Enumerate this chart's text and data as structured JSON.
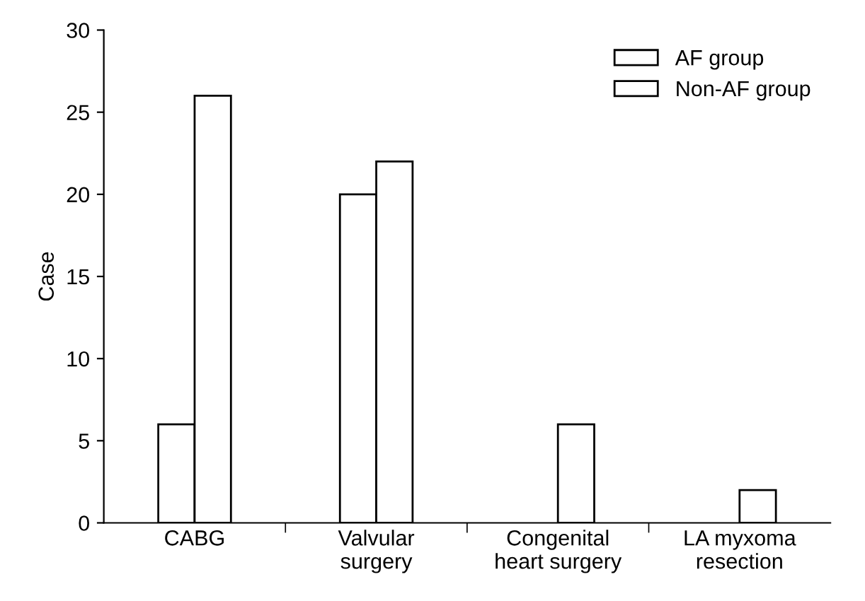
{
  "chart_data": {
    "type": "bar",
    "ylabel": "Case",
    "categories": [
      "CABG",
      "Valvular\nsurgery",
      "Congenital\nheart surgery",
      "LA myxoma\nresection"
    ],
    "series": [
      {
        "name": "AF group",
        "color": "#ffffff",
        "values": [
          6,
          20,
          0,
          0
        ]
      },
      {
        "name": "Non-AF group",
        "color": "#ffffff",
        "values": [
          26,
          22,
          6,
          2
        ]
      }
    ],
    "ylim": [
      0,
      30
    ],
    "yticks": [
      0,
      5,
      10,
      15,
      20,
      25,
      30
    ],
    "grid": false,
    "legend": "top right"
  }
}
